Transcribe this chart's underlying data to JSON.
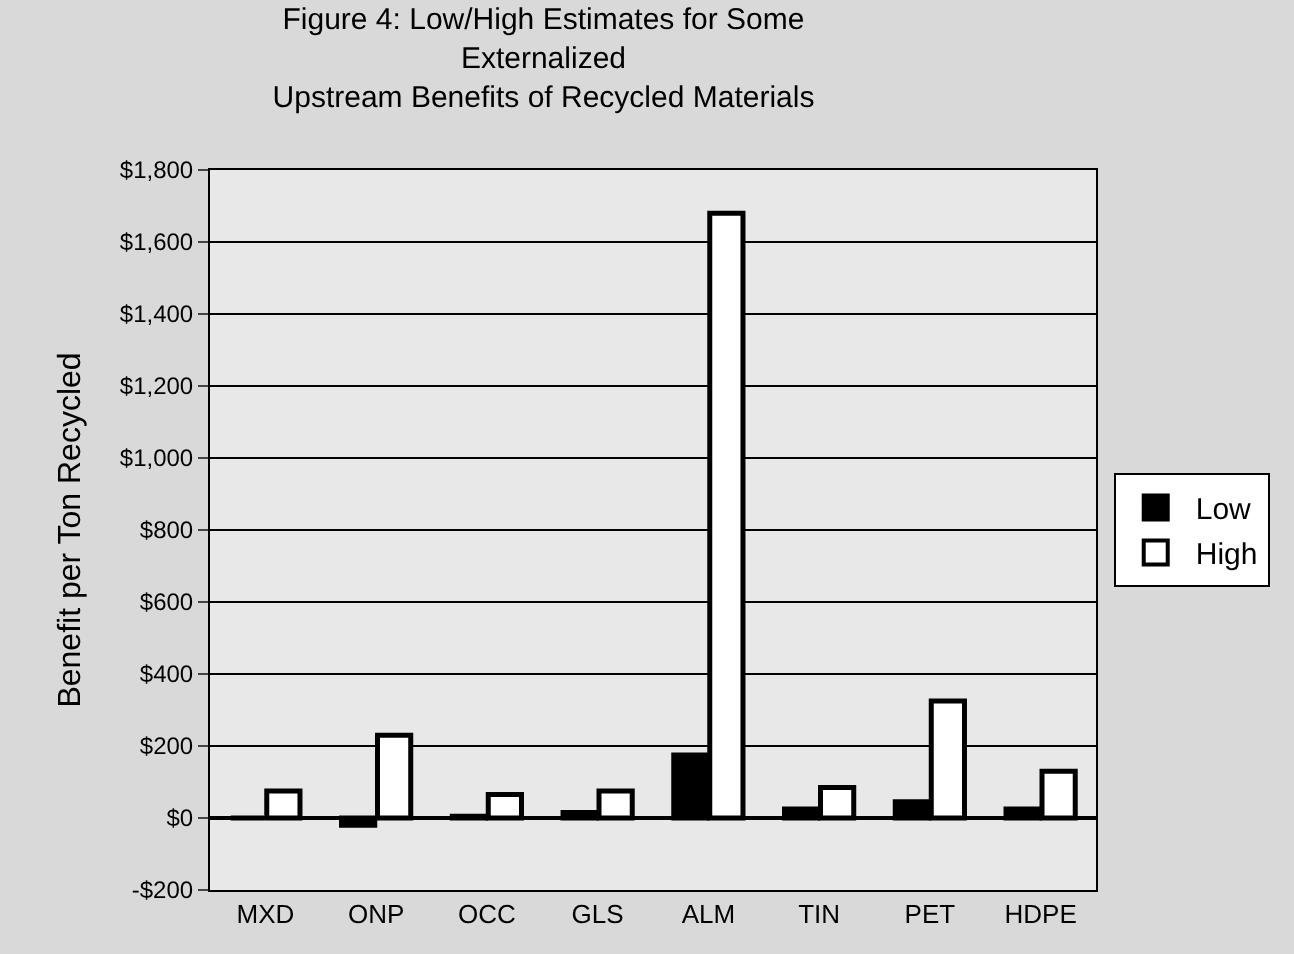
{
  "chart_data": {
    "type": "bar",
    "title": "Figure 4: Low/High Estimates for Some\nExternalized\nUpstream Benefits of Recycled Materials",
    "ylabel": "Benefit per Ton Recycled",
    "categories": [
      "MXD",
      "ONP",
      "OCC",
      "GLS",
      "ALM",
      "TIN",
      "PET",
      "HDPE"
    ],
    "series": [
      {
        "name": "Low",
        "color": "#000000",
        "values": [
          0,
          -20,
          5,
          15,
          175,
          25,
          45,
          25
        ]
      },
      {
        "name": "High",
        "color": "#ffffff",
        "values": [
          75,
          230,
          65,
          75,
          1680,
          85,
          325,
          130
        ]
      }
    ],
    "ylim": [
      -200,
      1800
    ],
    "yticks": [
      {
        "value": -200,
        "label": "-$200"
      },
      {
        "value": 0,
        "label": "$0"
      },
      {
        "value": 200,
        "label": "$200"
      },
      {
        "value": 400,
        "label": "$400"
      },
      {
        "value": 600,
        "label": "$600"
      },
      {
        "value": 800,
        "label": "$800"
      },
      {
        "value": 1000,
        "label": "$1,000"
      },
      {
        "value": 1200,
        "label": "$1,200"
      },
      {
        "value": 1400,
        "label": "$1,400"
      },
      {
        "value": 1600,
        "label": "$1,600"
      },
      {
        "value": 1800,
        "label": "$1,800"
      }
    ],
    "grid": "y",
    "legend": "right"
  }
}
